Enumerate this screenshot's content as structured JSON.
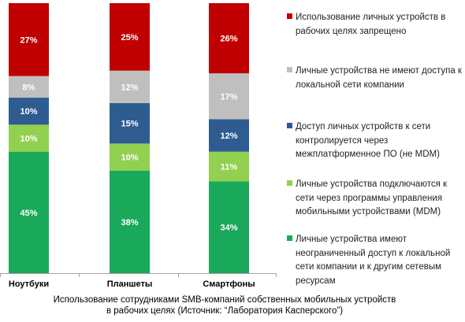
{
  "chart_data": {
    "type": "bar",
    "stacked": true,
    "percent": true,
    "categories": [
      "Ноутбуки",
      "Планшеты",
      "Смартфоны"
    ],
    "series": [
      {
        "name": "Личные устройства имеют неограниченный доступ к локальной сети компании и к другим сетевым ресурсам",
        "color": "#1aa85a",
        "values": [
          45,
          38,
          34
        ]
      },
      {
        "name": "Личные устройства подключаются к сети через программы управления мобильными устройствами (MDM)",
        "color": "#92d050",
        "values": [
          10,
          10,
          11
        ]
      },
      {
        "name": "Доступ личных устройств к сети контролируется через межплатформенное ПО (не MDM)",
        "color": "#2e5c91",
        "values": [
          10,
          15,
          12
        ]
      },
      {
        "name": "Личные устройства не имеют доступа к локальной сети компании",
        "color": "#bfbfbf",
        "values": [
          8,
          12,
          17
        ]
      },
      {
        "name": "Использование личных устройств в рабочих целях запрещено",
        "color": "#c00000",
        "values": [
          27,
          25,
          26
        ]
      }
    ],
    "data_labels": [
      [
        "45%",
        "38%",
        "34%"
      ],
      [
        "10%",
        "10%",
        "11%"
      ],
      [
        "10%",
        "15%",
        "12%"
      ],
      [
        "8%",
        "12%",
        "17%"
      ],
      [
        "27%",
        "25%",
        "26%"
      ]
    ],
    "legend_position": "right",
    "grid": false
  },
  "caption": {
    "line1": "Использование сотрудниками SMB-компаний собственных мобильных устройств",
    "line2": "в рабочих целях (Источник: “Лаборатория Касперского”)"
  }
}
